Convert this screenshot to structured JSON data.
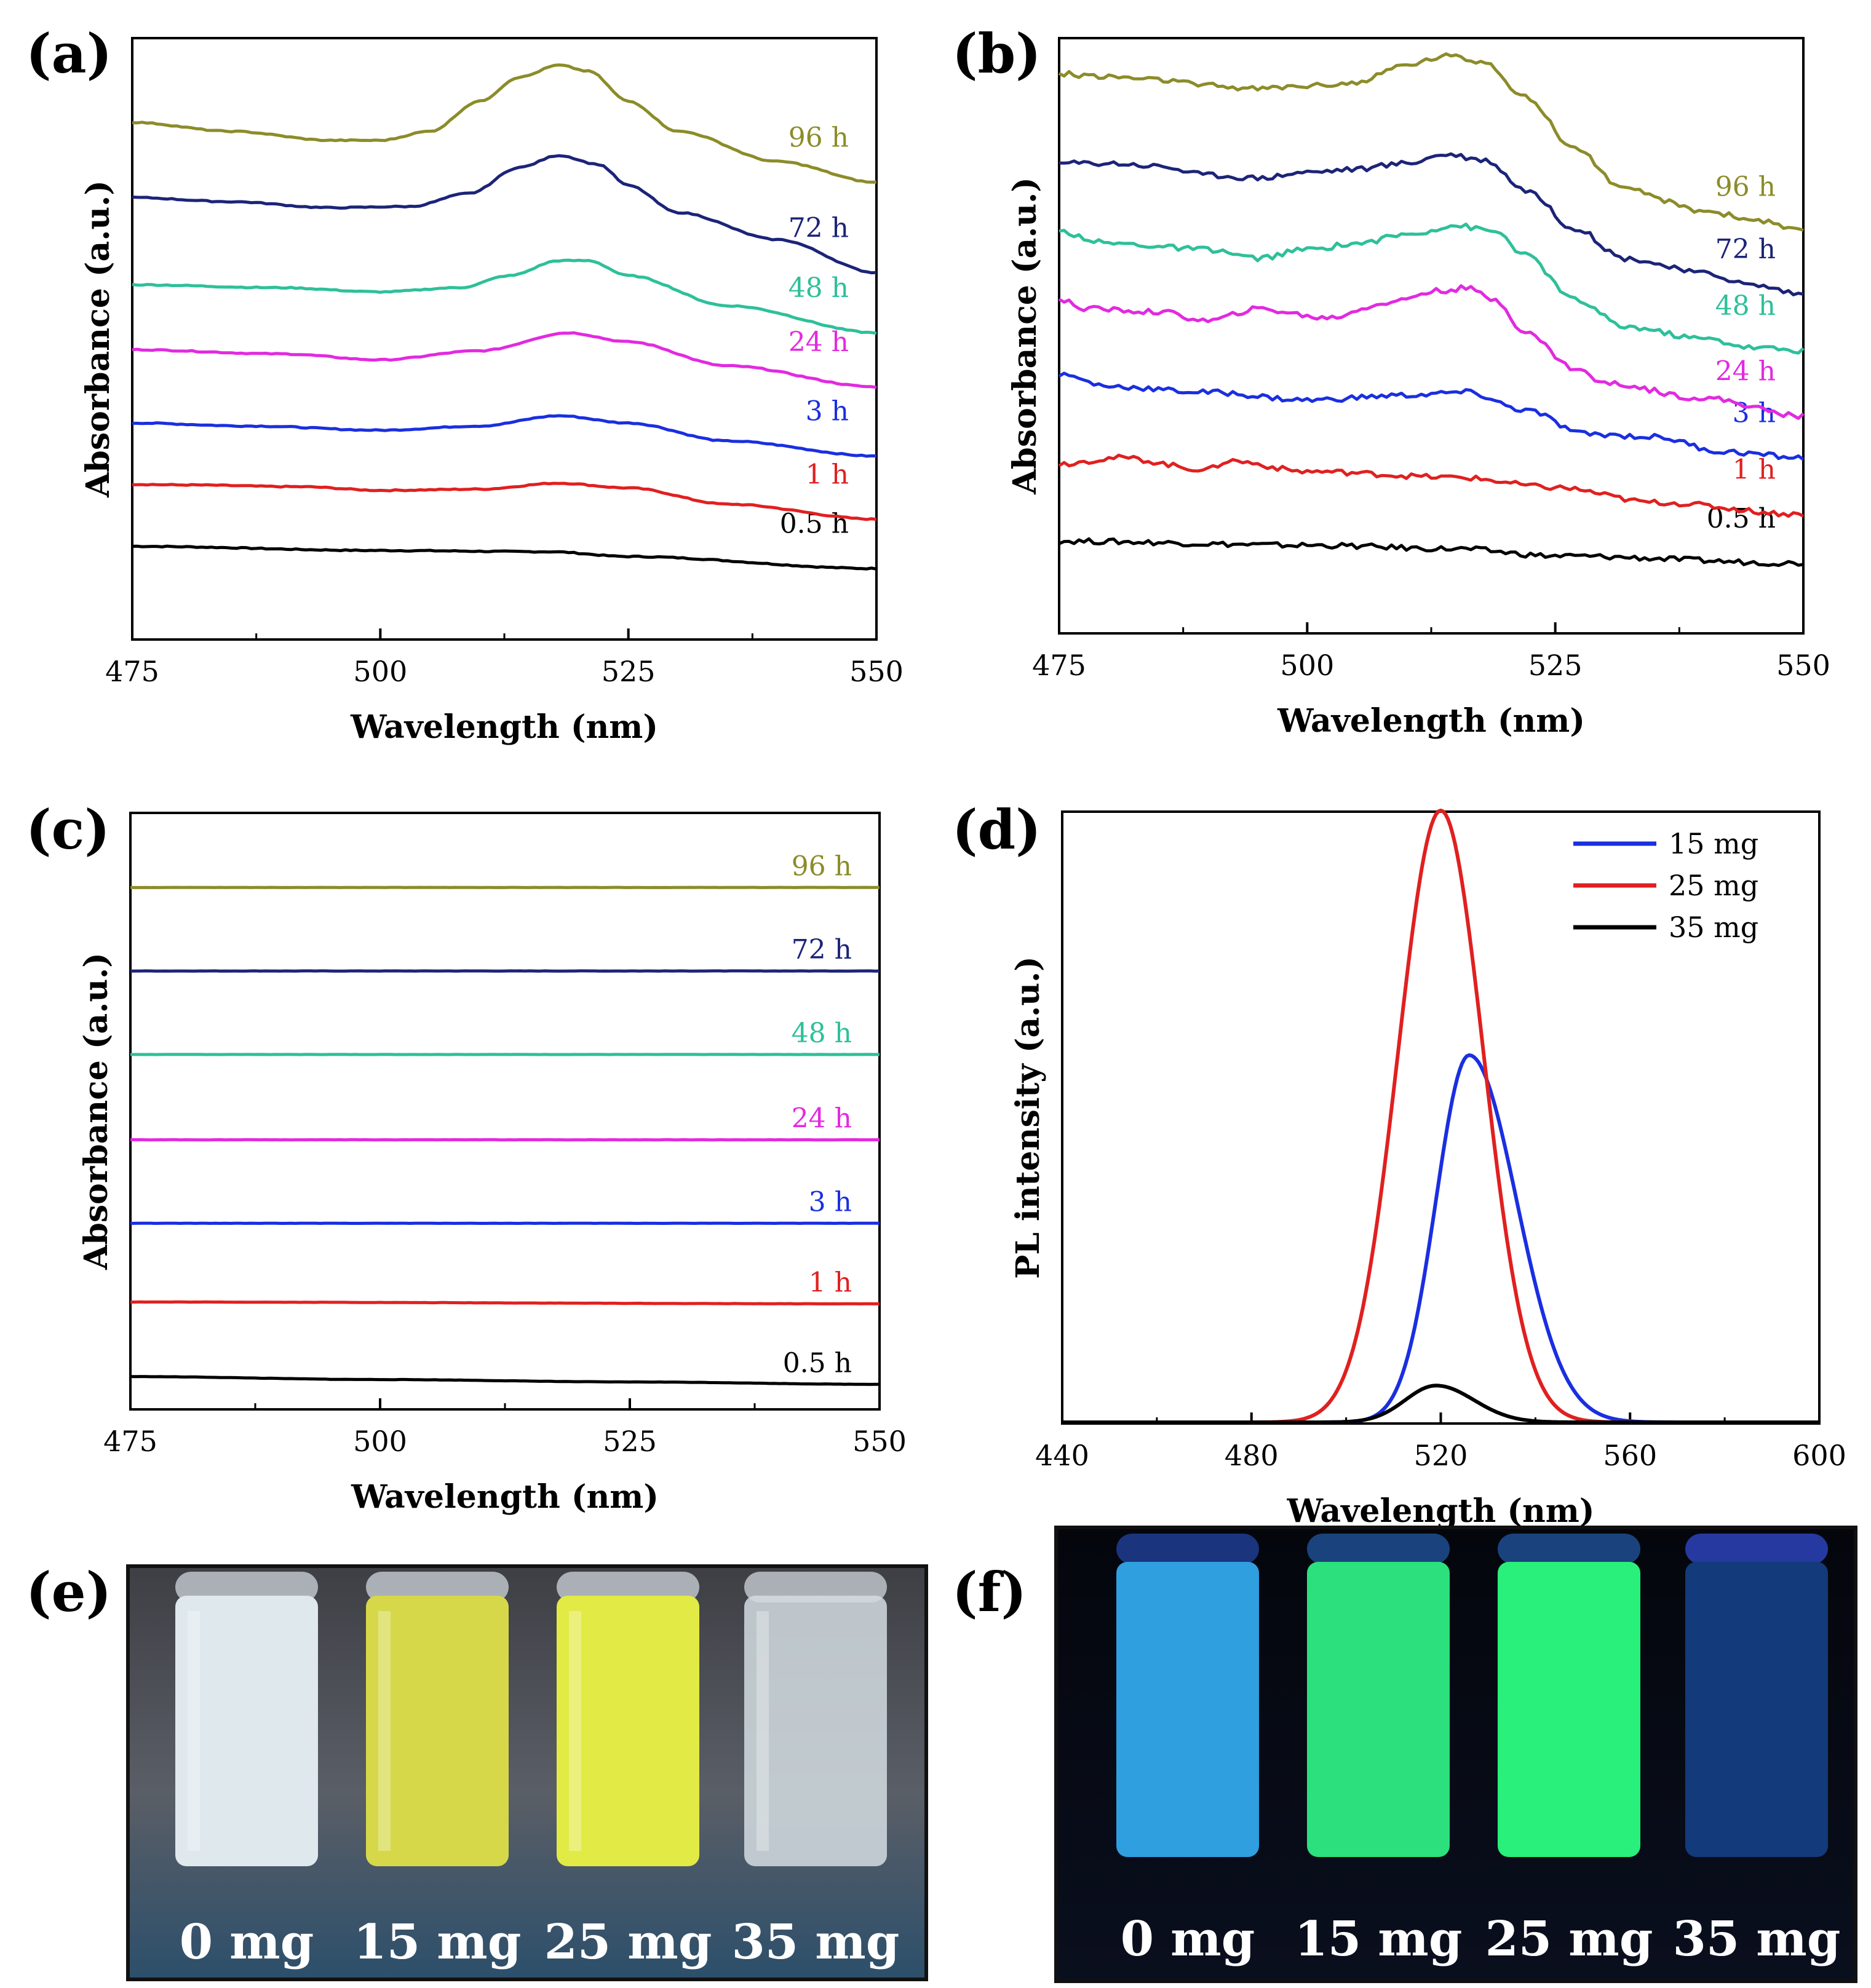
{
  "figure": {
    "panels": {
      "a": {
        "label": "(a)"
      },
      "b": {
        "label": "(b)"
      },
      "c": {
        "label": "(c)"
      },
      "d": {
        "label": "(d)"
      },
      "e": {
        "label": "(e)"
      },
      "f": {
        "label": "(f)"
      }
    },
    "photos": {
      "e": {
        "vials": [
          {
            "caption": "0 mg",
            "liquid": "#dfe8ec"
          },
          {
            "caption": "15 mg",
            "liquid": "#d6d84a"
          },
          {
            "caption": "25 mg",
            "liquid": "#e2ea46"
          },
          {
            "caption": "35 mg",
            "liquid": "#d3dde2"
          }
        ]
      },
      "f": {
        "vials": [
          {
            "caption": "0 mg",
            "liquid": "#2f9fe0"
          },
          {
            "caption": "15 mg",
            "liquid": "#2be07d"
          },
          {
            "caption": "25 mg",
            "liquid": "#28f07a"
          },
          {
            "caption": "35 mg",
            "liquid": "#133a7a"
          }
        ]
      }
    }
  },
  "chart_data": [
    {
      "id": "a",
      "type": "line",
      "xlabel": "Wavelength (nm)",
      "ylabel": "Absorbance (a.u.)",
      "xlim": [
        475,
        550
      ],
      "xticks": [
        475,
        500,
        525,
        550
      ],
      "ylim": [
        0,
        10
      ],
      "series": [
        {
          "name": "0.5 h",
          "color": "#000000",
          "x": [
            475,
            500,
            517,
            525,
            550
          ],
          "y": [
            1.55,
            1.48,
            1.46,
            1.38,
            1.18
          ]
        },
        {
          "name": "1 h",
          "color": "#e02020",
          "x": [
            475,
            480,
            492,
            500,
            510,
            518,
            525,
            535,
            550
          ],
          "y": [
            2.58,
            2.57,
            2.54,
            2.48,
            2.5,
            2.6,
            2.52,
            2.25,
            2.0
          ]
        },
        {
          "name": "3 h",
          "color": "#1a2fe0",
          "x": [
            475,
            487,
            500,
            510,
            518,
            525,
            535,
            550
          ],
          "y": [
            3.6,
            3.55,
            3.48,
            3.55,
            3.72,
            3.6,
            3.3,
            3.05
          ]
        },
        {
          "name": "24 h",
          "color": "#e22ae0",
          "x": [
            475,
            490,
            500,
            510,
            519,
            525,
            535,
            550
          ],
          "y": [
            4.82,
            4.75,
            4.65,
            4.8,
            5.1,
            4.95,
            4.55,
            4.2
          ]
        },
        {
          "name": "48 h",
          "color": "#2ec09a",
          "x": [
            475,
            490,
            500,
            508,
            513,
            518,
            521,
            525,
            535,
            550
          ],
          "y": [
            5.9,
            5.85,
            5.78,
            5.85,
            6.05,
            6.3,
            6.3,
            6.05,
            5.55,
            5.1
          ]
        },
        {
          "name": "72 h",
          "color": "#1c2478",
          "x": [
            475,
            485,
            495,
            503,
            509,
            514,
            518,
            522,
            525,
            530,
            540,
            550
          ],
          "y": [
            7.35,
            7.28,
            7.18,
            7.2,
            7.42,
            7.85,
            8.05,
            7.9,
            7.55,
            7.1,
            6.65,
            6.1
          ]
        },
        {
          "name": "96 h",
          "color": "#8c8c2a",
          "x": [
            475,
            485,
            495,
            500,
            505,
            510,
            514,
            518,
            521,
            525,
            530,
            540,
            550
          ],
          "y": [
            8.6,
            8.45,
            8.3,
            8.3,
            8.45,
            8.95,
            9.35,
            9.55,
            9.45,
            8.95,
            8.45,
            7.95,
            7.6
          ]
        }
      ],
      "labels": [
        "0.5 h",
        "1 h",
        "3 h",
        "24 h",
        "48 h",
        "72 h",
        "96 h"
      ]
    },
    {
      "id": "b",
      "type": "line",
      "xlabel": "Wavelength (nm)",
      "ylabel": "Absorbance (a.u.)",
      "xlim": [
        475,
        550
      ],
      "xticks": [
        475,
        500,
        525,
        550
      ],
      "ylim": [
        0,
        10
      ],
      "series": [
        {
          "name": "0.5 h",
          "color": "#000000",
          "x": [
            475,
            500,
            515,
            525,
            550
          ],
          "y": [
            1.55,
            1.48,
            1.42,
            1.3,
            1.18
          ]
        },
        {
          "name": "1 h",
          "color": "#e02020",
          "x": [
            475,
            481,
            490,
            492,
            500,
            515,
            525,
            535,
            550
          ],
          "y": [
            2.85,
            2.95,
            2.75,
            2.9,
            2.72,
            2.62,
            2.45,
            2.2,
            2.0
          ]
        },
        {
          "name": "3 h",
          "color": "#1a2fe0",
          "x": [
            475,
            480,
            490,
            500,
            510,
            516,
            522,
            528,
            535,
            542,
            550
          ],
          "y": [
            4.35,
            4.15,
            4.05,
            3.92,
            4.0,
            4.05,
            3.75,
            3.35,
            3.3,
            3.05,
            2.95
          ]
        },
        {
          "name": "24 h",
          "color": "#e22ae0",
          "x": [
            475,
            478,
            485,
            490,
            495,
            502,
            508,
            513,
            516,
            519,
            522,
            527,
            530,
            540,
            550
          ],
          "y": [
            5.6,
            5.45,
            5.4,
            5.25,
            5.45,
            5.3,
            5.55,
            5.75,
            5.8,
            5.6,
            5.05,
            4.45,
            4.2,
            3.95,
            3.65
          ]
        },
        {
          "name": "48 h",
          "color": "#2ec09a",
          "x": [
            475,
            480,
            490,
            495,
            500,
            505,
            510,
            515,
            519,
            522,
            527,
            532,
            540,
            545,
            550
          ],
          "y": [
            6.75,
            6.55,
            6.45,
            6.3,
            6.45,
            6.55,
            6.7,
            6.85,
            6.75,
            6.35,
            5.6,
            5.15,
            4.95,
            4.8,
            4.75
          ]
        },
        {
          "name": "72 h",
          "color": "#1c2478",
          "x": [
            475,
            480,
            485,
            490,
            495,
            500,
            505,
            510,
            514,
            518,
            522,
            527,
            532,
            540,
            545,
            550
          ],
          "y": [
            7.9,
            7.9,
            7.85,
            7.7,
            7.65,
            7.75,
            7.8,
            7.9,
            8.05,
            7.95,
            7.45,
            6.8,
            6.3,
            6.05,
            5.85,
            5.7
          ]
        },
        {
          "name": "96 h",
          "color": "#8c8c2a",
          "x": [
            475,
            480,
            485,
            490,
            495,
            500,
            505,
            510,
            514,
            518,
            522,
            527,
            532,
            540,
            545,
            550
          ],
          "y": [
            9.4,
            9.35,
            9.3,
            9.2,
            9.15,
            9.2,
            9.25,
            9.55,
            9.7,
            9.6,
            9.0,
            8.15,
            7.45,
            7.1,
            6.95,
            6.75
          ]
        }
      ],
      "labels": [
        "0.5 h",
        "1 h",
        "3 h",
        "24 h",
        "48 h",
        "72 h",
        "96 h"
      ]
    },
    {
      "id": "c",
      "type": "line",
      "xlabel": "Wavelength (nm)",
      "ylabel": "Absorbance (a.u.)",
      "xlim": [
        475,
        550
      ],
      "xticks": [
        475,
        500,
        525,
        550
      ],
      "ylim": [
        0,
        10
      ],
      "series": [
        {
          "name": "0.5 h",
          "color": "#000000",
          "x": [
            475,
            500,
            525,
            550
          ],
          "y": [
            0.55,
            0.5,
            0.46,
            0.42
          ]
        },
        {
          "name": "1 h",
          "color": "#e02020",
          "x": [
            475,
            550
          ],
          "y": [
            1.8,
            1.77
          ]
        },
        {
          "name": "3 h",
          "color": "#1a2fe0",
          "x": [
            475,
            550
          ],
          "y": [
            3.12,
            3.12
          ]
        },
        {
          "name": "24 h",
          "color": "#e22ae0",
          "x": [
            475,
            550
          ],
          "y": [
            4.52,
            4.52
          ]
        },
        {
          "name": "48 h",
          "color": "#2ec09a",
          "x": [
            475,
            550
          ],
          "y": [
            5.95,
            5.95
          ]
        },
        {
          "name": "72 h",
          "color": "#1c2478",
          "x": [
            475,
            550
          ],
          "y": [
            7.35,
            7.35
          ]
        },
        {
          "name": "96 h",
          "color": "#8c8c2a",
          "x": [
            475,
            550
          ],
          "y": [
            8.75,
            8.75
          ]
        }
      ],
      "labels": [
        "0.5 h",
        "1 h",
        "3 h",
        "24 h",
        "48 h",
        "72 h",
        "96 h"
      ]
    },
    {
      "id": "d",
      "type": "line",
      "xlabel": "Wavelength (nm)",
      "ylabel": "PL intensity (a.u.)",
      "xlim": [
        440,
        600
      ],
      "xticks": [
        440,
        480,
        520,
        560,
        600
      ],
      "ylim": [
        0,
        100
      ],
      "legend": {
        "position": "top-right",
        "entries": [
          "15 mg",
          "25 mg",
          "35 mg"
        ]
      },
      "series": [
        {
          "name": "15 mg",
          "color": "#1a2fe0",
          "peak": 526,
          "height": 60,
          "sigma_left": 7.0,
          "sigma_right": 10.0
        },
        {
          "name": "25 mg",
          "color": "#e02020",
          "peak": 520,
          "height": 100,
          "sigma_left": 9.0,
          "sigma_right": 9.0
        },
        {
          "name": "35 mg",
          "color": "#000000",
          "peak": 519,
          "height": 6,
          "sigma_left": 6.5,
          "sigma_right": 8.0
        }
      ]
    }
  ]
}
